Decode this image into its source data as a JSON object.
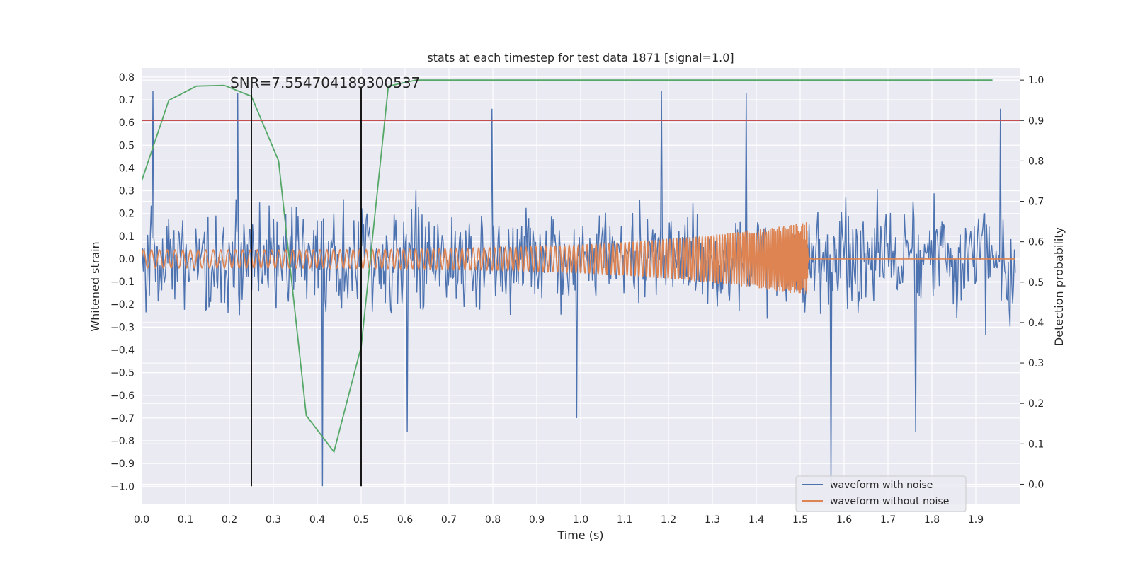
{
  "chart_data": {
    "type": "line",
    "title": "stats at each timestep for test data 1871 [signal=1.0]",
    "xlabel": "Time (s)",
    "ylabel": "Whitened strain",
    "y2label": "Detection probability",
    "xlim": [
      0.0,
      2.0
    ],
    "ylim": [
      -1.08,
      0.84
    ],
    "y2lim": [
      -0.05,
      1.03
    ],
    "x_ticks": [
      "0.0",
      "0.1",
      "0.2",
      "0.3",
      "0.4",
      "0.5",
      "0.6",
      "0.7",
      "0.8",
      "0.9",
      "1.0",
      "1.1",
      "1.2",
      "1.3",
      "1.4",
      "1.5",
      "1.6",
      "1.7",
      "1.8",
      "1.9"
    ],
    "y_ticks": [
      "0.8",
      "0.7",
      "0.6",
      "0.5",
      "0.4",
      "0.3",
      "0.2",
      "0.1",
      "0.0",
      "−0.1",
      "−0.2",
      "−0.3",
      "−0.4",
      "−0.5",
      "−0.6",
      "−0.7",
      "−0.8",
      "−0.9",
      "−1.0"
    ],
    "y2_ticks": [
      "1.0",
      "0.9",
      "0.8",
      "0.7",
      "0.6",
      "0.5",
      "0.4",
      "0.3",
      "0.2",
      "0.1",
      "0.0"
    ],
    "grid": true,
    "legend": {
      "placement": "bottom-right"
    },
    "annotation": "SNR=7.554704189300537",
    "series": [
      {
        "name": "waveform with noise",
        "color": "#4c72b0",
        "axis": "left",
        "kind": "noise",
        "amplitude": 0.22,
        "spike_peaks": [
          0.74,
          0.73,
          -1.0,
          -0.76,
          0.66,
          -0.7
        ]
      },
      {
        "name": "waveform without noise",
        "color": "#dd8452",
        "axis": "left",
        "kind": "chirp",
        "start_amplitude": 0.04,
        "end_amplitude": 0.17,
        "merger_time": 1.52
      },
      {
        "color": "#55a868",
        "axis": "right",
        "x": [
          0.0,
          0.062,
          0.125,
          0.188,
          0.25,
          0.312,
          0.375,
          0.438,
          0.5,
          0.562,
          0.625,
          1.938
        ],
        "y": [
          0.75,
          0.95,
          0.985,
          0.987,
          0.96,
          0.8,
          0.17,
          0.08,
          0.34,
          0.985,
          1.0,
          1.0
        ]
      }
    ],
    "hlines": [
      {
        "axis": "right",
        "y": 0.9,
        "color": "#c44e52"
      }
    ],
    "vlines": [
      {
        "x": 0.25,
        "color": "#000000",
        "ymin": -1.0,
        "ymax": 0.75
      },
      {
        "x": 0.5,
        "color": "#000000",
        "ymin": -1.0,
        "ymax": 0.75
      }
    ]
  }
}
